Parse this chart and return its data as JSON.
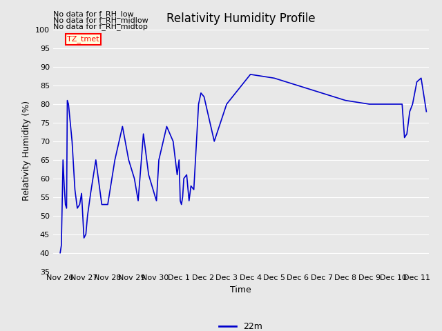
{
  "title": "Relativity Humidity Profile",
  "xlabel": "Time",
  "ylabel": "Relativity Humidity (%)",
  "ylim": [
    35,
    100
  ],
  "yticks": [
    35,
    40,
    45,
    50,
    55,
    60,
    65,
    70,
    75,
    80,
    85,
    90,
    95,
    100
  ],
  "line_color": "#0000cc",
  "fig_bg_color": "#e8e8e8",
  "plot_bg_color": "#e8e8e8",
  "legend_label": "22m",
  "no_data_texts": [
    "No data for f_RH_low",
    "No data for f_RH_midlow",
    "No data for f_RH_midtop"
  ],
  "tz_label": "TZ_tmet",
  "x_tick_labels": [
    "Nov 26",
    "Nov 27",
    "Nov 28",
    "Nov 29",
    "Nov 30",
    "Dec 1",
    "Dec 2",
    "Dec 3",
    "Dec 4",
    "Dec 5",
    "Dec 6",
    "Dec 7",
    "Dec 8",
    "Dec 9",
    "Dec 10",
    "Dec 11"
  ],
  "x": [
    0.0,
    0.05,
    0.12,
    0.17,
    0.22,
    0.27,
    0.3,
    0.35,
    0.5,
    0.62,
    0.72,
    0.82,
    0.9,
    1.0,
    1.08,
    1.15,
    1.28,
    1.5,
    1.75,
    2.0,
    2.3,
    2.62,
    2.88,
    3.12,
    3.28,
    3.5,
    3.72,
    4.0,
    4.05,
    4.15,
    4.48,
    4.75,
    4.92,
    5.0,
    5.05,
    5.1,
    5.15,
    5.2,
    5.32,
    5.42,
    5.5,
    5.62,
    5.82,
    5.92,
    6.05,
    6.48,
    7.0,
    8.0,
    9.0,
    10.0,
    11.0,
    12.0,
    13.0,
    13.5,
    14.0,
    14.18,
    14.38,
    14.48,
    14.58,
    14.7,
    14.82,
    15.0,
    15.18,
    15.4
  ],
  "y": [
    40,
    42,
    65,
    58,
    53,
    52,
    81,
    80,
    70,
    57,
    52,
    53,
    56,
    44,
    45,
    50,
    56,
    65,
    53,
    53,
    65,
    74,
    65,
    60,
    54,
    72,
    61,
    55,
    54,
    65,
    74,
    70,
    61,
    65,
    54,
    53,
    55,
    60,
    61,
    54,
    58,
    57,
    80,
    83,
    82,
    70,
    80,
    88,
    87,
    85,
    83,
    81,
    80,
    80,
    80,
    80,
    80,
    71,
    72,
    78,
    80,
    86,
    87,
    78
  ]
}
